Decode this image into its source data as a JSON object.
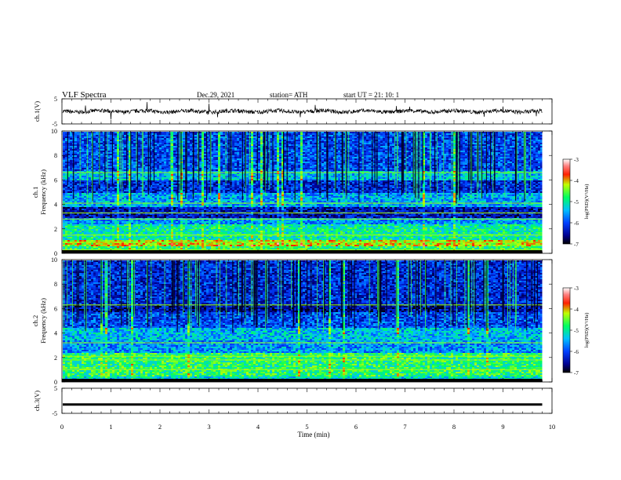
{
  "header": {
    "title": "VLF  Spectra",
    "date": "Dec.29, 2021",
    "station": "station= ATH",
    "start": "start  UT  =    21: 10: 1"
  },
  "chart_data": [
    {
      "type": "line",
      "title": "",
      "ylabel": "ch.1(V)",
      "ylim": [
        -5,
        5
      ],
      "ytick_labels": [
        "5",
        "-5"
      ],
      "x_range": [
        0,
        10
      ],
      "signal": "noisy waveform centred near 0 V with brief spikes, ending at x ≈ 9.8 min"
    },
    {
      "type": "heatmap",
      "ylabel": "ch.1\nFrequency  (kHz)",
      "ylim": [
        0,
        10
      ],
      "ytick_labels": [
        "0",
        "2",
        "4",
        "6",
        "8",
        "10"
      ],
      "colorbar": {
        "label": "log(PSD)(V²/Hz)",
        "range": [
          -7,
          -3
        ],
        "tick_labels": [
          "-3",
          "-4",
          "-5",
          "-6",
          "-7"
        ]
      },
      "bands_khz": [
        {
          "from": 0.0,
          "to": 0.6,
          "level": -4.8
        },
        {
          "from": 0.6,
          "to": 1.2,
          "level": -4.2
        },
        {
          "from": 1.2,
          "to": 2.5,
          "level": -5.0
        },
        {
          "from": 2.5,
          "to": 3.0,
          "level": -5.6
        },
        {
          "from": 3.0,
          "to": 3.8,
          "level": -6.4
        },
        {
          "from": 3.8,
          "to": 5.0,
          "level": -5.5
        },
        {
          "from": 5.0,
          "to": 6.0,
          "level": -6.2
        },
        {
          "from": 6.0,
          "to": 6.8,
          "level": -5.4
        },
        {
          "from": 6.8,
          "to": 10.0,
          "level": -6.0
        }
      ],
      "lines_khz": [
        0.3,
        0.9,
        1.5,
        2.8,
        3.3,
        4.1,
        6.6
      ]
    },
    {
      "type": "heatmap",
      "ylabel": "ch.2\nFrequency  (kHz)",
      "ylim": [
        0,
        10
      ],
      "ytick_labels": [
        "0",
        "2",
        "4",
        "6",
        "8",
        "10"
      ],
      "colorbar": {
        "label": "log(PSD)(V²/Hz)",
        "range": [
          -7,
          -3
        ],
        "tick_labels": [
          "-3",
          "-4",
          "-5",
          "-6",
          "-7"
        ]
      },
      "bands_khz": [
        {
          "from": 0.0,
          "to": 0.5,
          "level": -5.2
        },
        {
          "from": 0.5,
          "to": 2.5,
          "level": -4.8
        },
        {
          "from": 2.5,
          "to": 3.5,
          "level": -5.6
        },
        {
          "from": 3.5,
          "to": 4.5,
          "level": -5.4
        },
        {
          "from": 4.5,
          "to": 5.8,
          "level": -6.0
        },
        {
          "from": 5.8,
          "to": 6.4,
          "level": -6.5
        },
        {
          "from": 6.4,
          "to": 10.0,
          "level": -6.2
        }
      ],
      "lines_khz": [
        1.0,
        1.8,
        2.1,
        3.2,
        6.3
      ]
    },
    {
      "type": "line",
      "ylabel": "ch.3(V)",
      "ylim": [
        -5,
        5
      ],
      "ytick_labels": [
        "5",
        "-5"
      ],
      "x_range": [
        0,
        10
      ],
      "constant_value": -1.5
    }
  ],
  "x_axis": {
    "label": "Time  (min)",
    "range": [
      0,
      10
    ],
    "tick_labels": [
      "0",
      "1",
      "2",
      "3",
      "4",
      "5",
      "6",
      "7",
      "8",
      "9",
      "10"
    ],
    "data_end_min": 9.8
  }
}
